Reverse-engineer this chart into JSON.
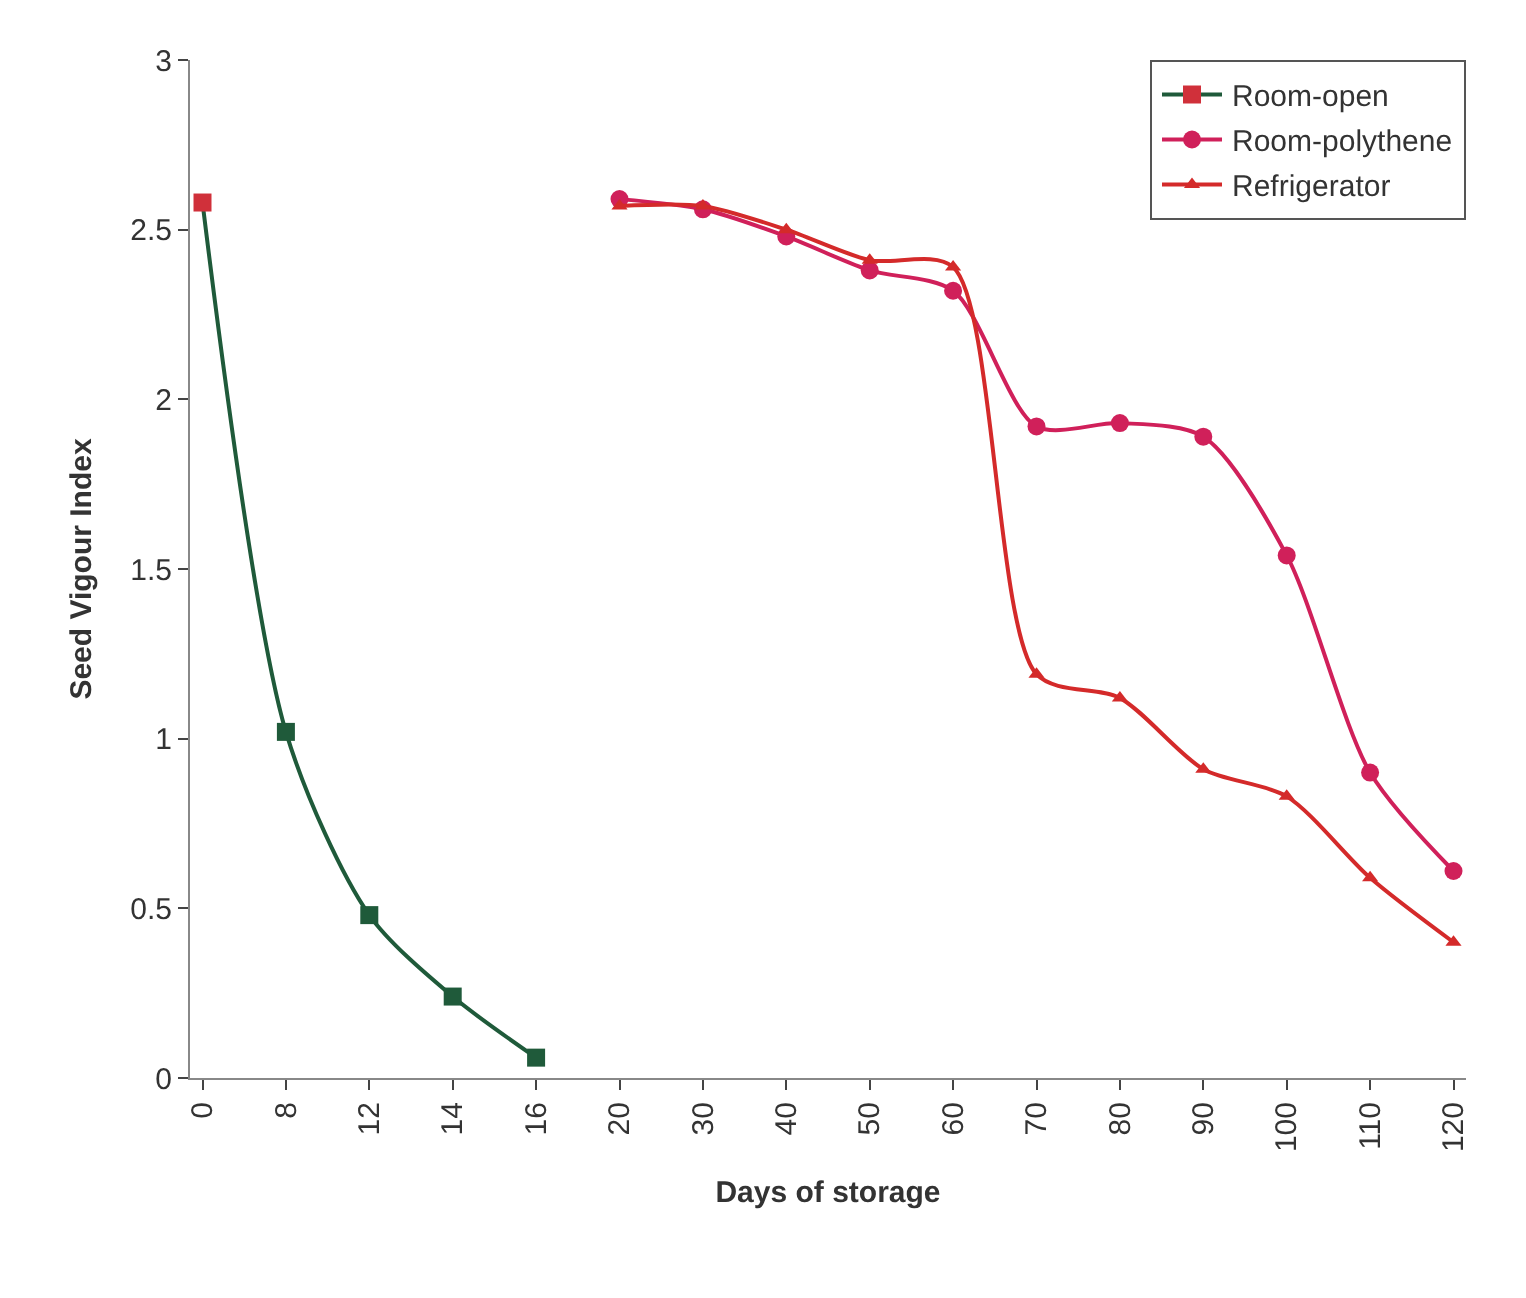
{
  "chart_data": {
    "type": "line",
    "xlabel": "Days of storage",
    "ylabel": "Seed Vigour Index",
    "categories": [
      "0",
      "8",
      "12",
      "14",
      "16",
      "20",
      "30",
      "40",
      "50",
      "60",
      "70",
      "80",
      "90",
      "100",
      "110",
      "120"
    ],
    "ylim": [
      0,
      3
    ],
    "yticks": [
      0,
      0.5,
      1,
      1.5,
      2,
      2.5,
      3
    ],
    "legend": "top right",
    "line_style": "solid",
    "series": [
      {
        "name": "Room-open",
        "color": "#1f5a3a",
        "marker": "square",
        "colors": [
          "#d0303a",
          "#1f5a3a",
          "#1f5a3a",
          "#1f5a3a",
          "#1f5a3a",
          null,
          null,
          null,
          null,
          null,
          null,
          null,
          null,
          null,
          null,
          null
        ],
        "values": [
          2.58,
          1.02,
          0.48,
          0.24,
          0.06,
          null,
          null,
          null,
          null,
          null,
          null,
          null,
          null,
          null,
          null,
          null
        ]
      },
      {
        "name": "Room-polythene",
        "color": "#d0205a",
        "marker": "circle",
        "values": [
          null,
          null,
          null,
          null,
          null,
          2.59,
          2.56,
          2.48,
          2.38,
          2.32,
          1.92,
          1.93,
          1.89,
          1.54,
          0.9,
          0.61
        ]
      },
      {
        "name": "Refrigerator",
        "color": "#d42a2a",
        "marker": "triangle",
        "values": [
          null,
          null,
          null,
          null,
          null,
          2.57,
          2.57,
          2.5,
          2.41,
          2.39,
          1.19,
          1.12,
          0.91,
          0.83,
          0.59,
          0.4
        ]
      }
    ]
  }
}
